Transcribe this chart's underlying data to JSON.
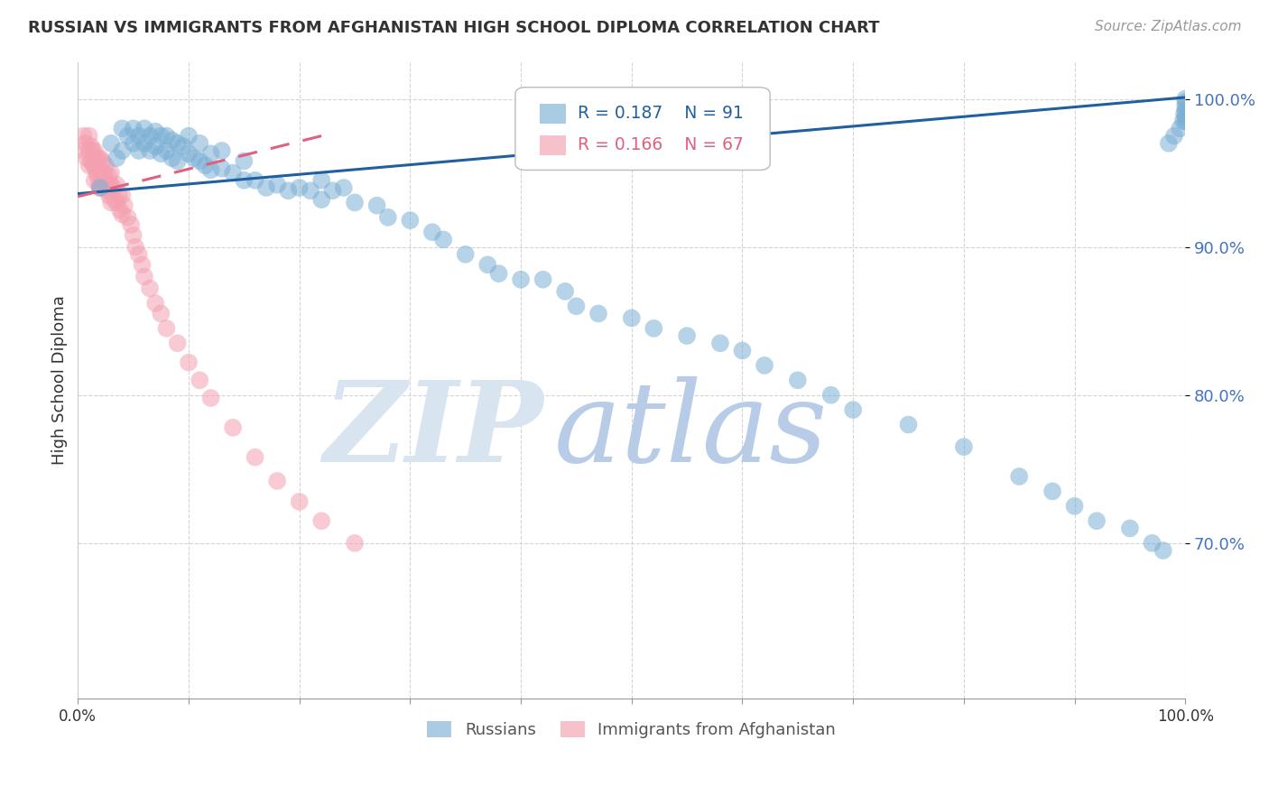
{
  "title": "RUSSIAN VS IMMIGRANTS FROM AFGHANISTAN HIGH SCHOOL DIPLOMA CORRELATION CHART",
  "source": "Source: ZipAtlas.com",
  "ylabel": "High School Diploma",
  "xmin": 0.0,
  "xmax": 1.0,
  "ymin": 0.595,
  "ymax": 1.025,
  "yticks": [
    0.7,
    0.8,
    0.9,
    1.0
  ],
  "ytick_labels": [
    "70.0%",
    "80.0%",
    "90.0%",
    "100.0%"
  ],
  "xticks": [
    0.0,
    0.1,
    0.2,
    0.3,
    0.4,
    0.5,
    0.6,
    0.7,
    0.8,
    0.9,
    1.0
  ],
  "xtick_labels": [
    "0.0%",
    "",
    "",
    "",
    "",
    "",
    "",
    "",
    "",
    "",
    "100.0%"
  ],
  "grid_color": "#d0d0d0",
  "blue_color": "#7bafd4",
  "pink_color": "#f4a0b0",
  "blue_edge_color": "#5090c0",
  "pink_edge_color": "#e07090",
  "blue_line_color": "#2060a0",
  "pink_line_color": "#e06080",
  "r_blue": 0.187,
  "n_blue": 91,
  "r_pink": 0.166,
  "n_pink": 67,
  "legend_blue_label": "Russians",
  "legend_pink_label": "Immigrants from Afghanistan",
  "watermark_zip": "ZIP",
  "watermark_atlas": "atlas",
  "watermark_color_zip": "#d8e4f0",
  "watermark_color_atlas": "#b8cce8",
  "blue_line_x0": 0.0,
  "blue_line_y0": 0.936,
  "blue_line_x1": 1.0,
  "blue_line_y1": 1.001,
  "pink_line_x0": 0.0,
  "pink_line_y0": 0.934,
  "pink_line_x1": 0.22,
  "pink_line_y1": 0.975,
  "blue_scatter_x": [
    0.02,
    0.03,
    0.035,
    0.04,
    0.04,
    0.045,
    0.05,
    0.05,
    0.055,
    0.055,
    0.06,
    0.06,
    0.065,
    0.065,
    0.07,
    0.07,
    0.075,
    0.075,
    0.08,
    0.08,
    0.085,
    0.085,
    0.09,
    0.09,
    0.095,
    0.1,
    0.1,
    0.105,
    0.11,
    0.11,
    0.115,
    0.12,
    0.12,
    0.13,
    0.13,
    0.14,
    0.15,
    0.15,
    0.16,
    0.17,
    0.18,
    0.19,
    0.2,
    0.21,
    0.22,
    0.22,
    0.23,
    0.24,
    0.25,
    0.27,
    0.28,
    0.3,
    0.32,
    0.33,
    0.35,
    0.37,
    0.38,
    0.4,
    0.42,
    0.44,
    0.45,
    0.47,
    0.5,
    0.52,
    0.55,
    0.58,
    0.6,
    0.62,
    0.65,
    0.68,
    0.7,
    0.75,
    0.8,
    0.85,
    0.88,
    0.9,
    0.92,
    0.95,
    0.97,
    0.98,
    0.985,
    0.99,
    0.995,
    0.998,
    0.999,
    1.0,
    1.0,
    1.0,
    1.0,
    1.0,
    1.0
  ],
  "blue_scatter_y": [
    0.94,
    0.97,
    0.96,
    0.98,
    0.965,
    0.975,
    0.98,
    0.97,
    0.975,
    0.965,
    0.98,
    0.97,
    0.975,
    0.965,
    0.978,
    0.968,
    0.975,
    0.963,
    0.975,
    0.965,
    0.972,
    0.96,
    0.97,
    0.958,
    0.968,
    0.975,
    0.963,
    0.96,
    0.97,
    0.958,
    0.955,
    0.963,
    0.952,
    0.965,
    0.953,
    0.95,
    0.958,
    0.945,
    0.945,
    0.94,
    0.942,
    0.938,
    0.94,
    0.938,
    0.945,
    0.932,
    0.938,
    0.94,
    0.93,
    0.928,
    0.92,
    0.918,
    0.91,
    0.905,
    0.895,
    0.888,
    0.882,
    0.878,
    0.878,
    0.87,
    0.86,
    0.855,
    0.852,
    0.845,
    0.84,
    0.835,
    0.83,
    0.82,
    0.81,
    0.8,
    0.79,
    0.78,
    0.765,
    0.745,
    0.735,
    0.725,
    0.715,
    0.71,
    0.7,
    0.695,
    0.97,
    0.975,
    0.98,
    0.985,
    0.99,
    0.998,
    0.995,
    0.992,
    0.988,
    0.985,
    1.0
  ],
  "pink_scatter_x": [
    0.005,
    0.005,
    0.007,
    0.008,
    0.01,
    0.01,
    0.01,
    0.012,
    0.012,
    0.013,
    0.014,
    0.015,
    0.015,
    0.015,
    0.016,
    0.017,
    0.018,
    0.018,
    0.019,
    0.02,
    0.02,
    0.02,
    0.021,
    0.022,
    0.022,
    0.023,
    0.024,
    0.025,
    0.025,
    0.026,
    0.027,
    0.028,
    0.028,
    0.029,
    0.03,
    0.03,
    0.03,
    0.032,
    0.033,
    0.035,
    0.035,
    0.037,
    0.038,
    0.04,
    0.04,
    0.042,
    0.045,
    0.048,
    0.05,
    0.052,
    0.055,
    0.058,
    0.06,
    0.065,
    0.07,
    0.075,
    0.08,
    0.09,
    0.1,
    0.11,
    0.12,
    0.14,
    0.16,
    0.18,
    0.2,
    0.22,
    0.25
  ],
  "pink_scatter_y": [
    0.975,
    0.965,
    0.97,
    0.96,
    0.975,
    0.965,
    0.955,
    0.968,
    0.958,
    0.965,
    0.955,
    0.965,
    0.955,
    0.945,
    0.96,
    0.95,
    0.96,
    0.948,
    0.942,
    0.96,
    0.95,
    0.94,
    0.952,
    0.958,
    0.945,
    0.94,
    0.95,
    0.955,
    0.943,
    0.945,
    0.938,
    0.948,
    0.935,
    0.942,
    0.95,
    0.94,
    0.93,
    0.94,
    0.932,
    0.942,
    0.93,
    0.935,
    0.925,
    0.935,
    0.922,
    0.928,
    0.92,
    0.915,
    0.908,
    0.9,
    0.895,
    0.888,
    0.88,
    0.872,
    0.862,
    0.855,
    0.845,
    0.835,
    0.822,
    0.81,
    0.798,
    0.778,
    0.758,
    0.742,
    0.728,
    0.715,
    0.7
  ]
}
